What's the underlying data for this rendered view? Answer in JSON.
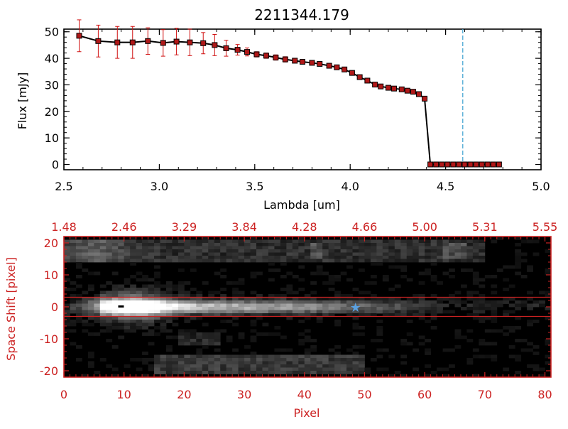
{
  "title": "2211344.179",
  "colors": {
    "axis_top": "#000000",
    "axis_bottom": "#cc2222",
    "marker_fill": "#b01818",
    "error_bar": "#d01010",
    "dashed_line": "#3aa0d0",
    "star": "#5aa0e0"
  },
  "chart_data": [
    {
      "type": "line",
      "title": "2211344.179",
      "xlabel": "Lambda [um]",
      "ylabel": "Flux [mJy]",
      "xlim": [
        2.5,
        5.0
      ],
      "ylim": [
        -2,
        51
      ],
      "xticks": [
        "2.5",
        "3.0",
        "3.5",
        "4.0",
        "4.5",
        "5.0"
      ],
      "xtick_values": [
        2.5,
        3.0,
        3.5,
        4.0,
        4.5,
        5.0
      ],
      "yticks": [
        "0",
        "10",
        "20",
        "30",
        "40",
        "50"
      ],
      "ytick_values": [
        0,
        10,
        20,
        30,
        40,
        50
      ],
      "vline_x": 4.59,
      "series": [
        {
          "x": [
            2.58,
            2.68,
            2.78,
            2.86,
            2.94,
            3.02,
            3.09,
            3.16,
            3.23,
            3.29,
            3.35,
            3.41,
            3.46,
            3.51,
            3.56,
            3.61,
            3.66,
            3.71,
            3.75,
            3.8,
            3.84,
            3.89,
            3.93,
            3.97,
            4.01,
            4.05,
            4.09,
            4.13,
            4.16,
            4.2,
            4.23,
            4.27,
            4.3,
            4.33,
            4.36,
            4.39,
            4.42,
            4.45,
            4.48,
            4.51,
            4.54,
            4.57,
            4.6,
            4.63,
            4.66,
            4.69,
            4.72,
            4.75,
            4.78
          ],
          "y": [
            48.5,
            46.5,
            46.0,
            46.0,
            46.5,
            45.8,
            46.3,
            46.0,
            45.7,
            45.0,
            43.8,
            43.2,
            42.4,
            41.5,
            41.0,
            40.3,
            39.6,
            39.1,
            38.7,
            38.3,
            37.9,
            37.2,
            36.6,
            35.8,
            34.5,
            32.9,
            31.6,
            30.1,
            29.4,
            28.9,
            28.6,
            28.3,
            27.8,
            27.4,
            26.5,
            24.8,
            0,
            0,
            0,
            0,
            0,
            0,
            0,
            0,
            0,
            0,
            0,
            0,
            0
          ],
          "yerr": [
            6,
            6,
            6,
            6,
            5,
            5,
            5,
            5,
            4,
            4,
            3,
            2,
            1.5,
            1,
            1,
            1,
            1,
            0.8,
            0.8,
            0.8,
            0.8,
            0.8,
            0.8,
            0.8,
            0.8,
            0.8,
            0.8,
            0.8,
            0.8,
            0.8,
            0.8,
            0.8,
            0.8,
            0.8,
            0.8,
            0.8,
            0,
            0,
            0,
            0,
            0,
            0,
            0,
            0,
            0,
            0,
            0,
            0,
            0
          ]
        }
      ]
    },
    {
      "type": "heatmap",
      "xlabel": "Pixel",
      "ylabel": "Space Shift [pixel]",
      "xlim": [
        0,
        81
      ],
      "ylim": [
        -22,
        22
      ],
      "xticks": [
        "0",
        "10",
        "20",
        "30",
        "40",
        "50",
        "60",
        "70",
        "80"
      ],
      "xtick_values": [
        0,
        10,
        20,
        30,
        40,
        50,
        60,
        70,
        80
      ],
      "yticks": [
        "20",
        "10",
        "0",
        "-10",
        "-20"
      ],
      "ytick_values": [
        20,
        10,
        0,
        -10,
        -20
      ],
      "top_ticks": [
        "1.48",
        "2.46",
        "3.29",
        "3.84",
        "4.28",
        "4.66",
        "5.00",
        "5.31",
        "5.55"
      ],
      "top_tick_values": [
        0,
        10,
        20,
        30,
        40,
        50,
        60,
        70,
        80
      ],
      "hlines": [
        3,
        -3
      ],
      "star_x": 48.5,
      "star_y": 0
    }
  ]
}
